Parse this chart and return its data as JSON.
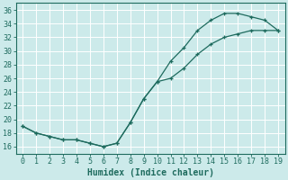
{
  "xlabel": "Humidex (Indice chaleur)",
  "bg_color": "#cceaea",
  "grid_color": "#ffffff",
  "line_color": "#1e6b5e",
  "xlim": [
    -0.5,
    19.5
  ],
  "ylim": [
    15.0,
    37.0
  ],
  "xticks": [
    0,
    1,
    2,
    3,
    4,
    5,
    6,
    7,
    8,
    9,
    10,
    11,
    12,
    13,
    14,
    15,
    16,
    17,
    18,
    19
  ],
  "yticks": [
    16,
    18,
    20,
    22,
    24,
    26,
    28,
    30,
    32,
    34,
    36
  ],
  "upper_x": [
    0,
    1,
    2,
    3,
    4,
    5,
    6,
    7,
    8,
    9,
    10,
    11,
    12,
    13,
    14,
    15,
    16,
    17,
    18,
    19
  ],
  "upper_y": [
    19,
    18,
    17.5,
    17,
    17,
    16.5,
    16,
    16.5,
    19.5,
    23.0,
    25.5,
    28.5,
    30.5,
    33.0,
    34.5,
    35.5,
    35.5,
    35.0,
    34.5,
    33.0
  ],
  "lower_x": [
    0,
    1,
    2,
    3,
    4,
    5,
    6,
    7,
    8,
    9,
    10,
    11,
    12,
    13,
    14,
    15,
    16,
    17,
    18,
    19
  ],
  "lower_y": [
    19,
    18,
    17.5,
    17,
    17,
    16.5,
    16,
    16.5,
    19.5,
    23.0,
    25.5,
    26.0,
    27.5,
    29.5,
    31.0,
    32.0,
    32.5,
    33.0,
    33.0,
    33.0
  ],
  "figsize": [
    3.2,
    2.0
  ],
  "dpi": 100,
  "tick_labelsize": 6,
  "xlabel_fontsize": 7
}
